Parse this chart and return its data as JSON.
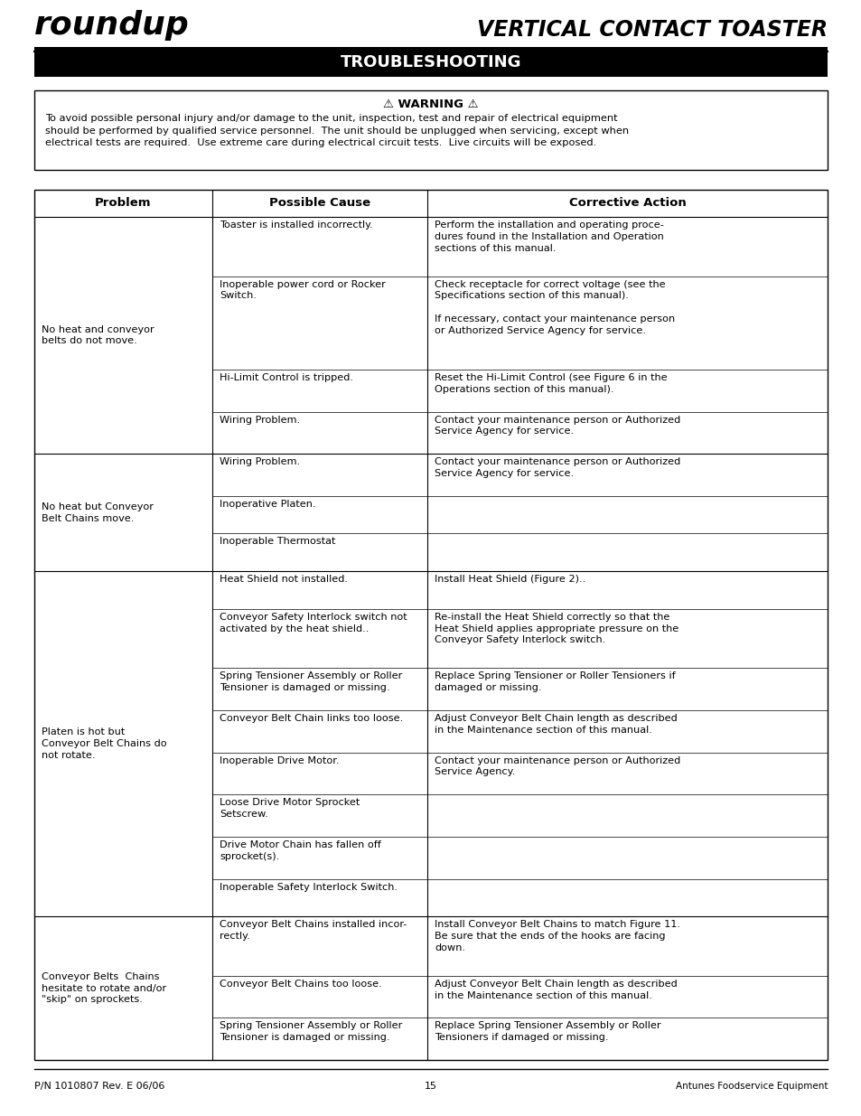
{
  "page_bg": "#ffffff",
  "title_right": "VERTICAL CONTACT TOASTER",
  "section_title": "TROUBLESHOOTING",
  "warning_title": "⚠ WARNING ⚠",
  "warning_text": "To avoid possible personal injury and/or damage to the unit, inspection, test and repair of electrical equipment\nshould be performed by qualified service personnel.  The unit should be unplugged when servicing, except when\nelectrical tests are required.  Use extreme care during electrical circuit tests.  Live circuits will be exposed.",
  "table_headers": [
    "Problem",
    "Possible Cause",
    "Corrective Action"
  ],
  "footer_left": "P/N 1010807 Rev. E 06/06",
  "footer_center": "15",
  "footer_right": "Antunes Foodservice Equipment",
  "table_rows": [
    {
      "problem": "No heat and conveyor\nbelts do not move.",
      "causes": [
        "Toaster is installed incorrectly.",
        "Inoperable power cord or Rocker\nSwitch.",
        "Hi-Limit Control is tripped.",
        "Wiring Problem."
      ],
      "actions": [
        "Perform the installation and operating proce-\ndures found in the Installation and Operation\nsections of this manual.",
        "Check receptacle for correct voltage (see the\nSpecifications section of this manual).\n\nIf necessary, contact your maintenance person\nor Authorized Service Agency for service.",
        "Reset the Hi-Limit Control (see Figure 6 in the\nOperations section of this manual).",
        "Contact your maintenance person or Authorized\nService Agency for service."
      ]
    },
    {
      "problem": "No heat but Conveyor\nBelt Chains move.",
      "causes": [
        "Wiring Problem.",
        "Inoperative Platen.",
        "Inoperable Thermostat"
      ],
      "actions": [
        "Contact your maintenance person or Authorized\nService Agency for service.",
        "",
        ""
      ]
    },
    {
      "problem": "Platen is hot but\nConveyor Belt Chains do\nnot rotate.",
      "causes": [
        "Heat Shield not installed.",
        "Conveyor Safety Interlock switch not\nactivated by the heat shield..",
        "Spring Tensioner Assembly or Roller\nTensioner is damaged or missing.",
        "Conveyor Belt Chain links too loose.",
        "Inoperable Drive Motor.",
        "Loose Drive Motor Sprocket\nSetscrew.",
        "Drive Motor Chain has fallen off\nsprocket(s).",
        "Inoperable Safety Interlock Switch."
      ],
      "actions": [
        "Install Heat Shield (Figure 2)..",
        "Re-install the Heat Shield correctly so that the\nHeat Shield applies appropriate pressure on the\nConveyor Safety Interlock switch.",
        "Replace Spring Tensioner or Roller Tensioners if\ndamaged or missing.",
        "Adjust Conveyor Belt Chain length as described\nin the Maintenance section of this manual.",
        "Contact your maintenance person or Authorized\nService Agency.",
        "",
        "",
        ""
      ]
    },
    {
      "problem": "Conveyor Belts  Chains\nhesitate to rotate and/or\n\"skip\" on sprockets.",
      "causes": [
        "Conveyor Belt Chains installed incor-\nrectly.",
        "Conveyor Belt Chains too loose.",
        "Spring Tensioner Assembly or Roller\nTensioner is damaged or missing."
      ],
      "actions": [
        "Install Conveyor Belt Chains to match Figure 11.\nBe sure that the ends of the hooks are facing\ndown.",
        "Adjust Conveyor Belt Chain length as described\nin the Maintenance section of this manual.",
        "Replace Spring Tensioner Assembly or Roller\nTensioners if damaged or missing."
      ]
    }
  ]
}
